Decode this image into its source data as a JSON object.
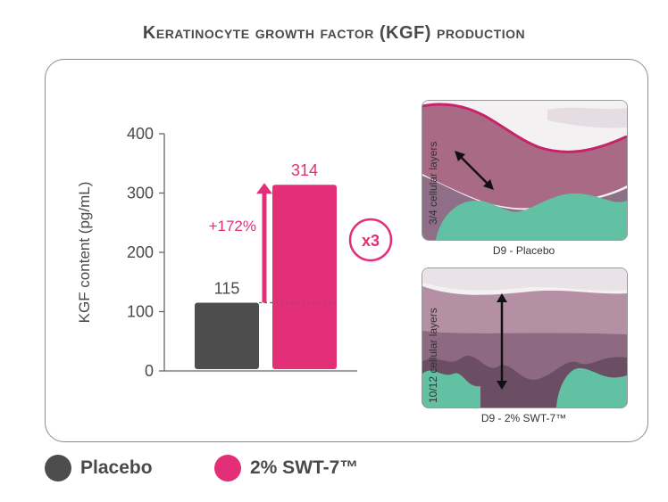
{
  "title": "Keratinocyte growth factor (KGF) production",
  "colors": {
    "placebo": "#4d4d4d",
    "treatment": "#e22f78",
    "text": "#4a4a4a"
  },
  "chart_data": {
    "type": "bar",
    "title": "Keratinocyte growth factor (KGF) production",
    "ylabel": "KGF content (pg/mL)",
    "xlabel": "",
    "ylim": [
      0,
      400
    ],
    "yticks": [
      0,
      100,
      200,
      300,
      400
    ],
    "categories": [
      "Placebo",
      "2% SWT-7™"
    ],
    "values": [
      115,
      314
    ],
    "value_labels": [
      "115",
      "314"
    ],
    "annotations": {
      "increase": "+172%",
      "multiplier": "x3"
    }
  },
  "images": [
    {
      "caption": "D9 - Placebo",
      "side_label": "3/4 cellular layers"
    },
    {
      "caption": "D9 - 2% SWT-7™",
      "side_label": "10/12 cellular layers"
    }
  ],
  "legend": [
    {
      "label": "Placebo",
      "color": "#4d4d4d"
    },
    {
      "label": "2% SWT-7™",
      "color": "#e22f78"
    }
  ]
}
